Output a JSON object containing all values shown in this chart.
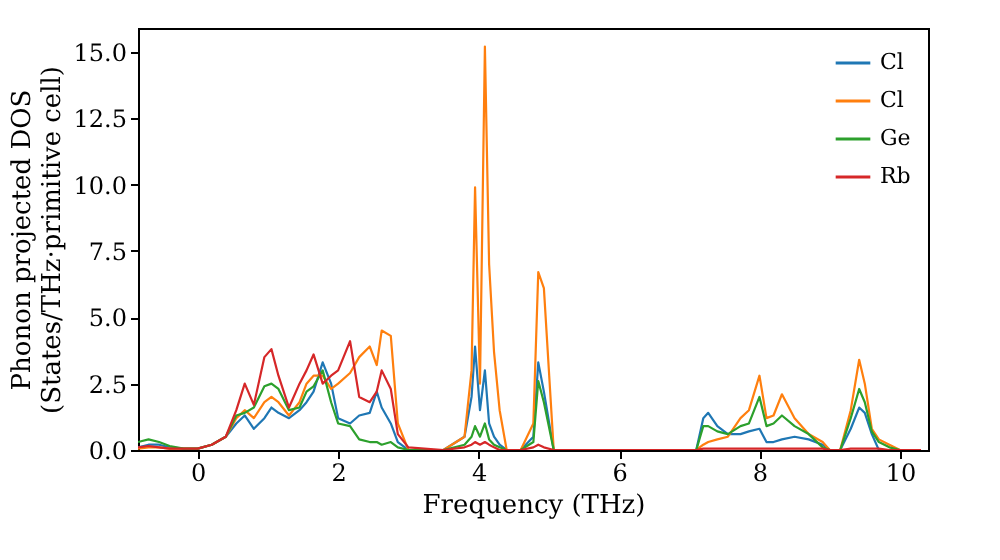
{
  "chart_data": {
    "type": "line",
    "xlabel": "Frequency (THz)",
    "ylabel": "Phonon projected DOS\n(States/THz·primitive cell)",
    "x": [
      -0.85,
      -0.7,
      -0.55,
      -0.4,
      -0.2,
      0,
      0.2,
      0.4,
      0.55,
      0.67,
      0.8,
      0.95,
      1.05,
      1.15,
      1.3,
      1.45,
      1.55,
      1.65,
      1.78,
      1.9,
      2.0,
      2.17,
      2.3,
      2.45,
      2.55,
      2.62,
      2.75,
      2.85,
      3.0,
      3.5,
      3.8,
      3.9,
      3.95,
      4.02,
      4.09,
      4.15,
      4.22,
      4.3,
      4.4,
      4.6,
      4.78,
      4.85,
      4.93,
      5.07,
      5.5,
      6.5,
      7.1,
      7.2,
      7.27,
      7.4,
      7.55,
      7.73,
      7.85,
      8.0,
      8.1,
      8.2,
      8.32,
      8.5,
      8.7,
      8.9,
      9.0,
      9.15,
      9.3,
      9.42,
      9.5,
      9.6,
      9.7,
      9.85,
      10.0,
      10.3
    ],
    "series": [
      {
        "name": "Cl",
        "color": "#1f77b4",
        "values": [
          0.1,
          0.2,
          0.2,
          0.1,
          0.05,
          0.05,
          0.2,
          0.5,
          1.0,
          1.3,
          0.8,
          1.2,
          1.6,
          1.4,
          1.2,
          1.5,
          1.8,
          2.2,
          3.3,
          2.5,
          1.2,
          1.0,
          1.3,
          1.4,
          2.2,
          1.6,
          1.0,
          0.3,
          0,
          0,
          0.5,
          2.0,
          3.9,
          1.5,
          3.0,
          1.0,
          0.5,
          0.2,
          0,
          0,
          0.5,
          3.3,
          2.2,
          0,
          0,
          0,
          0,
          1.2,
          1.4,
          0.9,
          0.6,
          0.6,
          0.7,
          0.8,
          0.3,
          0.3,
          0.4,
          0.5,
          0.4,
          0.2,
          0,
          0,
          0.8,
          1.6,
          1.4,
          0.6,
          0,
          0,
          null,
          null
        ]
      },
      {
        "name": "Cl",
        "color": "#ff7f0e",
        "values": [
          0.05,
          0.1,
          0.1,
          0.05,
          0.05,
          0.05,
          0.2,
          0.5,
          1.2,
          1.5,
          1.2,
          1.8,
          2.0,
          1.8,
          1.3,
          1.8,
          2.5,
          2.8,
          2.8,
          2.3,
          2.5,
          2.9,
          3.5,
          3.9,
          3.2,
          4.5,
          4.3,
          1.0,
          0,
          0,
          0.5,
          3.0,
          9.9,
          2.5,
          15.2,
          7.0,
          3.7,
          1.5,
          0,
          0,
          1.0,
          6.7,
          6.1,
          0,
          0,
          0,
          0,
          0.2,
          0.3,
          0.4,
          0.5,
          1.2,
          1.5,
          2.8,
          1.2,
          1.3,
          2.1,
          1.2,
          0.6,
          0.3,
          0,
          0,
          1.5,
          3.4,
          2.5,
          0.8,
          0.4,
          0.2,
          0,
          0
        ]
      },
      {
        "name": "Ge",
        "color": "#2ca02c",
        "values": [
          0.3,
          0.4,
          0.3,
          0.15,
          0.05,
          0.05,
          0.2,
          0.5,
          1.3,
          1.4,
          1.6,
          2.4,
          2.5,
          2.3,
          1.5,
          1.6,
          2.2,
          2.4,
          3.0,
          1.8,
          1.0,
          0.9,
          0.4,
          0.3,
          0.3,
          0.2,
          0.3,
          0.1,
          0,
          0,
          0.2,
          0.5,
          0.9,
          0.5,
          1.0,
          0.4,
          0.2,
          0.1,
          0,
          0,
          0.3,
          2.6,
          1.8,
          0,
          0,
          0,
          0,
          0.9,
          0.9,
          0.7,
          0.6,
          0.9,
          1.0,
          2.0,
          0.9,
          1.0,
          1.3,
          0.9,
          0.6,
          0.1,
          0,
          0,
          1.2,
          2.3,
          1.8,
          0.7,
          0.3,
          0.1,
          0,
          0
        ]
      },
      {
        "name": "Rb",
        "color": "#d62728",
        "values": [
          0.1,
          0.15,
          0.1,
          0.05,
          0.05,
          0.05,
          0.2,
          0.5,
          1.5,
          2.5,
          1.7,
          3.5,
          3.8,
          2.8,
          1.6,
          2.5,
          3.0,
          3.6,
          2.5,
          2.8,
          3.0,
          4.1,
          2.0,
          1.8,
          2.2,
          3.0,
          2.3,
          0.6,
          0.1,
          0,
          0.1,
          0.2,
          0.3,
          0.2,
          0.3,
          0.2,
          0.1,
          0,
          0,
          0,
          0.1,
          0.2,
          0.1,
          0,
          0,
          0,
          0,
          0.05,
          0.05,
          0.05,
          0.05,
          0.05,
          0.05,
          0.05,
          0.05,
          0.05,
          0.05,
          0.05,
          0.05,
          0.05,
          0,
          0,
          0.05,
          0.05,
          0.05,
          0.05,
          0.05,
          0,
          0,
          0
        ]
      }
    ],
    "xlim": [
      -0.85,
      10.4
    ],
    "ylim": [
      0,
      15.9
    ],
    "xticks": [
      0,
      2,
      4,
      6,
      8,
      10
    ],
    "yticks": [
      {
        "value": 0,
        "label": "0.0"
      },
      {
        "value": 2.5,
        "label": "2.5"
      },
      {
        "value": 5,
        "label": "5.0"
      },
      {
        "value": 7.5,
        "label": "7.5"
      },
      {
        "value": 10,
        "label": "10.0"
      },
      {
        "value": 12.5,
        "label": "12.5"
      },
      {
        "value": 15,
        "label": "15.0"
      }
    ],
    "grid": false,
    "legend": "top right",
    "marker": "none",
    "line_style": "solid"
  }
}
